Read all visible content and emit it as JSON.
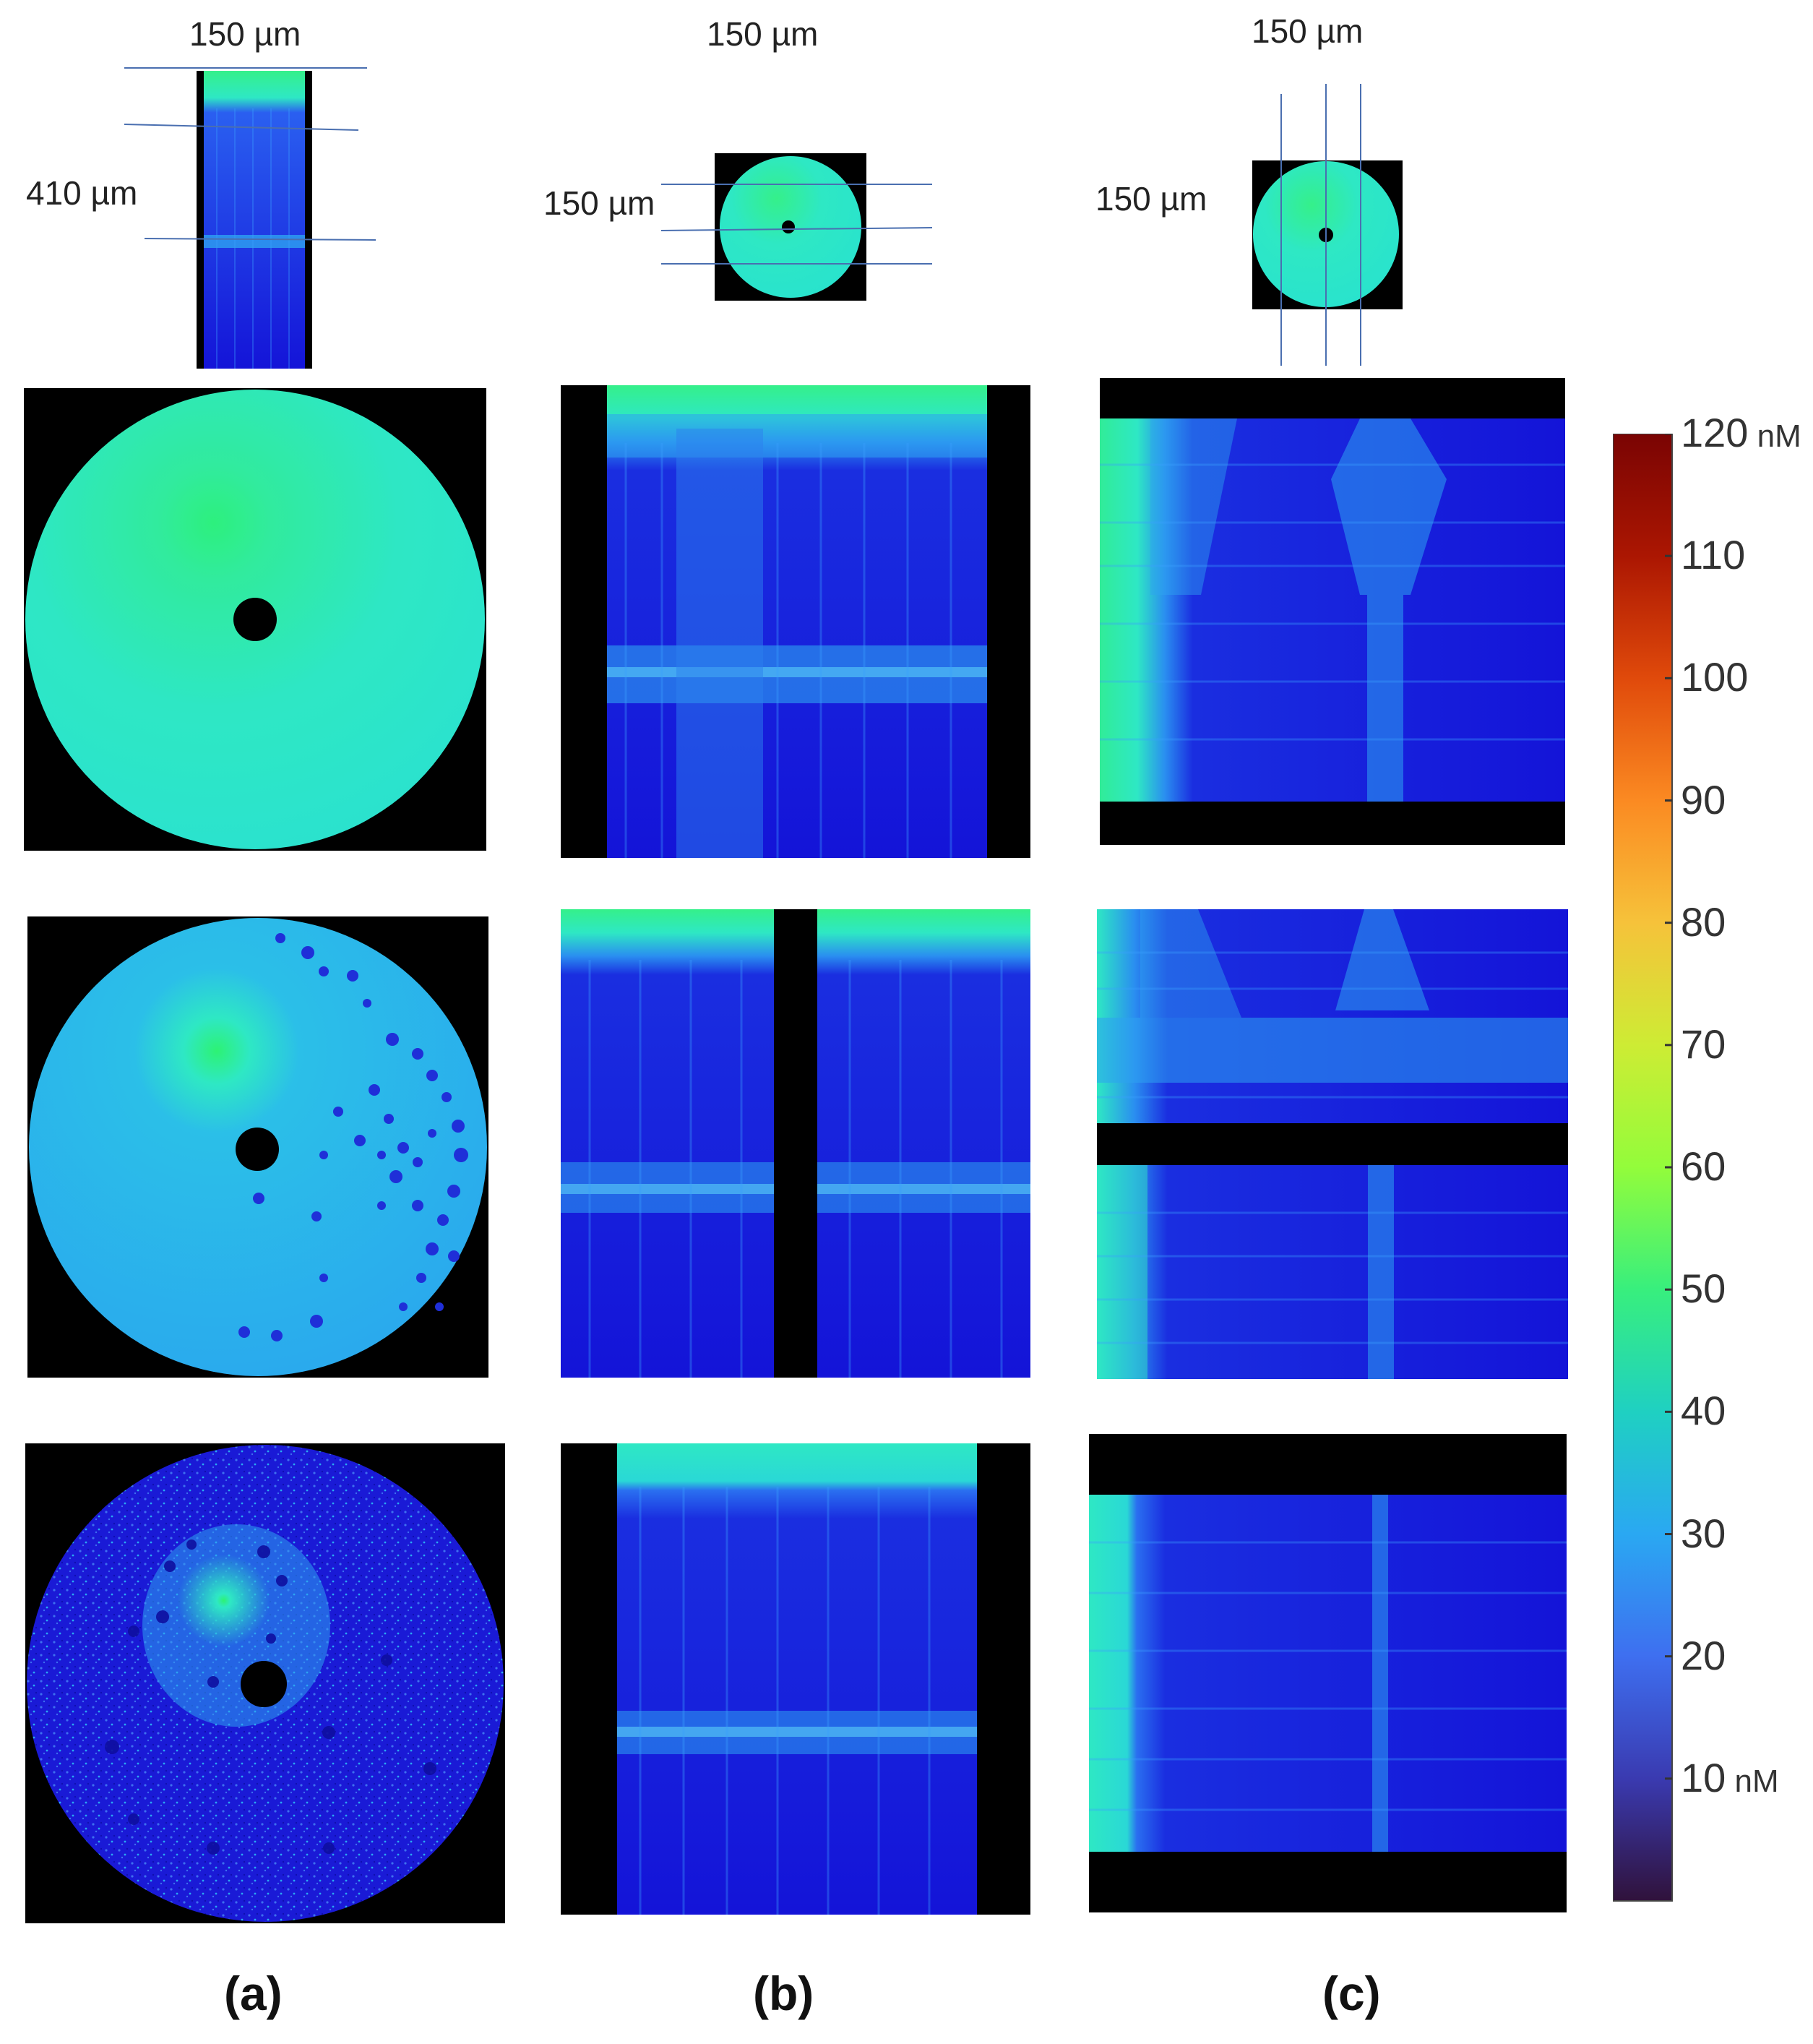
{
  "header_labels": {
    "col_a_width": "150 µm",
    "col_a_height": "410 µm",
    "col_b_width": "150 µm",
    "col_b_height": "150 µm",
    "col_c_width": "150 µm",
    "col_c_height": "150 µm"
  },
  "captions": {
    "a": "(a)",
    "b": "(b)",
    "c": "(c)"
  },
  "colorbar": {
    "min_value": 0,
    "max_value": 120,
    "unit": "nM",
    "ticks": [
      {
        "value": 120,
        "label": "120",
        "unit": "nM"
      },
      {
        "value": 110,
        "label": "110",
        "unit": ""
      },
      {
        "value": 100,
        "label": "100",
        "unit": ""
      },
      {
        "value": 90,
        "label": "90",
        "unit": ""
      },
      {
        "value": 80,
        "label": "80",
        "unit": ""
      },
      {
        "value": 70,
        "label": "70",
        "unit": ""
      },
      {
        "value": 60,
        "label": "60",
        "unit": ""
      },
      {
        "value": 50,
        "label": "50",
        "unit": ""
      },
      {
        "value": 40,
        "label": "40",
        "unit": ""
      },
      {
        "value": 30,
        "label": "30",
        "unit": ""
      },
      {
        "value": 20,
        "label": "20",
        "unit": ""
      },
      {
        "value": 10,
        "label": "10",
        "unit": "nM"
      }
    ],
    "colors": [
      "#30123b",
      "#3a3ab0",
      "#3e6ff0",
      "#2aa8f2",
      "#1fd0c2",
      "#38ef7d",
      "#93fc3b",
      "#cdec34",
      "#f6c23a",
      "#fb8a22",
      "#e04a0b",
      "#ab1602",
      "#7a0403"
    ]
  },
  "palette": {
    "bg_black": "#000000",
    "light_cyan": "#2ee8c4",
    "cyan_green": "#35f08a",
    "mid_blue": "#2f8ff0",
    "deep_blue": "#1414d8",
    "cut_line": "#4a6fb0"
  }
}
